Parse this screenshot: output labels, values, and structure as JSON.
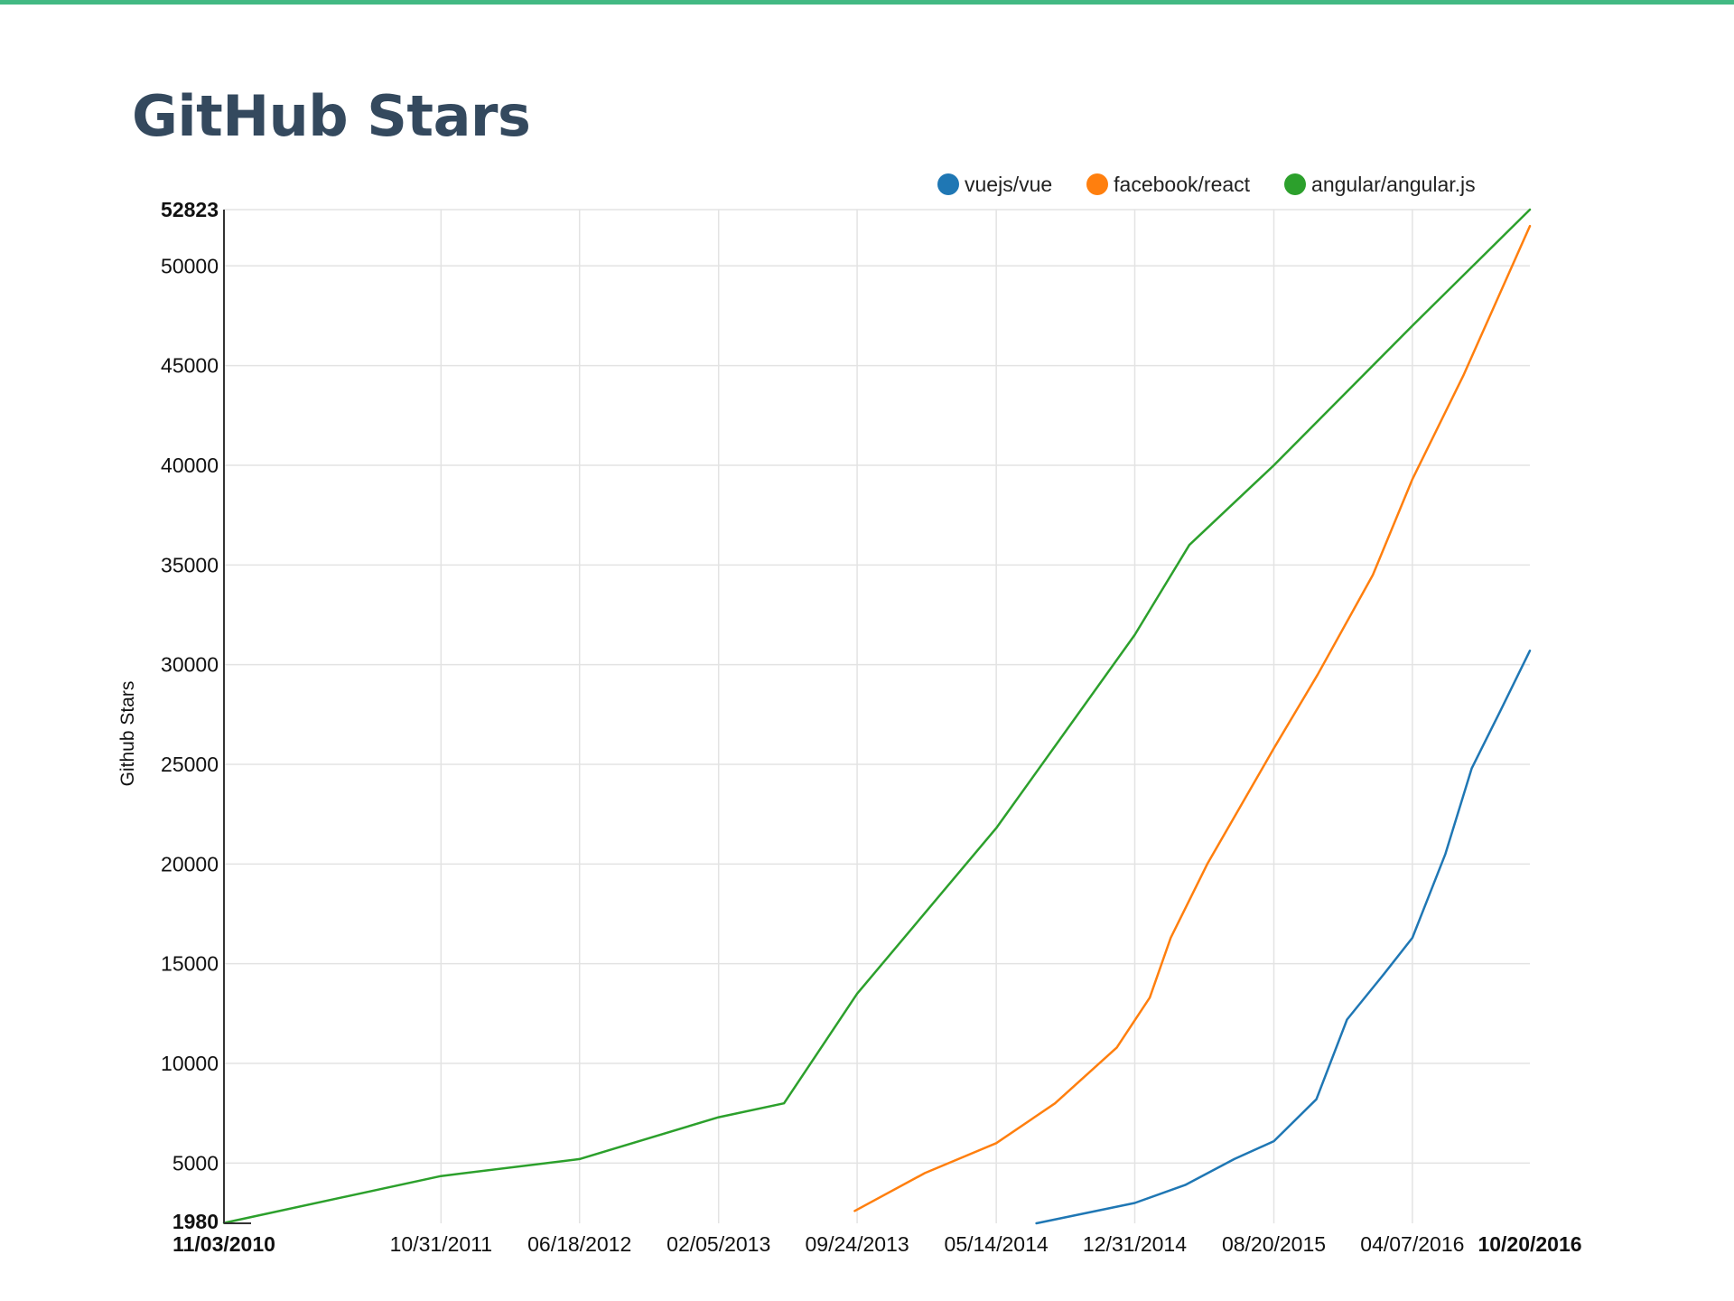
{
  "page": {
    "title": "GitHub Stars"
  },
  "colors": {
    "accent": "#42b983",
    "title": "#34495e",
    "grid": "#e3e3e3",
    "axis": "#333333"
  },
  "legend": [
    {
      "name": "vuejs/vue",
      "color": "#1f77b4"
    },
    {
      "name": "facebook/react",
      "color": "#ff7f0e"
    },
    {
      "name": "angular/angular.js",
      "color": "#2ca02c"
    }
  ],
  "chart_data": {
    "type": "line",
    "title": "GitHub Stars",
    "xlabel": "",
    "ylabel": "Github Stars",
    "grid": true,
    "legend_position": "top-right",
    "xlim": [
      "2010-11-03",
      "2016-10-20"
    ],
    "ylim": [
      1980,
      52823
    ],
    "x_ticks": [
      {
        "label": "11/03/2010",
        "date": "2010-11-03",
        "bold": true
      },
      {
        "label": "10/31/2011",
        "date": "2011-10-31",
        "bold": false
      },
      {
        "label": "06/18/2012",
        "date": "2012-06-18",
        "bold": false
      },
      {
        "label": "02/05/2013",
        "date": "2013-02-05",
        "bold": false
      },
      {
        "label": "09/24/2013",
        "date": "2013-09-24",
        "bold": false
      },
      {
        "label": "05/14/2014",
        "date": "2014-05-14",
        "bold": false
      },
      {
        "label": "12/31/2014",
        "date": "2014-12-31",
        "bold": false
      },
      {
        "label": "08/20/2015",
        "date": "2015-08-20",
        "bold": false
      },
      {
        "label": "04/07/2016",
        "date": "2016-04-07",
        "bold": false
      },
      {
        "label": "10/20/2016",
        "date": "2016-10-20",
        "bold": true
      }
    ],
    "y_ticks": [
      {
        "label": "1980",
        "value": 1980,
        "bold": true
      },
      {
        "label": "5000",
        "value": 5000,
        "bold": false
      },
      {
        "label": "10000",
        "value": 10000,
        "bold": false
      },
      {
        "label": "15000",
        "value": 15000,
        "bold": false
      },
      {
        "label": "20000",
        "value": 20000,
        "bold": false
      },
      {
        "label": "25000",
        "value": 25000,
        "bold": false
      },
      {
        "label": "30000",
        "value": 30000,
        "bold": false
      },
      {
        "label": "35000",
        "value": 35000,
        "bold": false
      },
      {
        "label": "40000",
        "value": 40000,
        "bold": false
      },
      {
        "label": "45000",
        "value": 45000,
        "bold": false
      },
      {
        "label": "50000",
        "value": 50000,
        "bold": false
      },
      {
        "label": "52823",
        "value": 52823,
        "bold": true
      }
    ],
    "series": [
      {
        "name": "vuejs/vue",
        "color": "#1f77b4",
        "points": [
          [
            "2014-07-20",
            1980
          ],
          [
            "2014-12-31",
            3000
          ],
          [
            "2015-03-25",
            3900
          ],
          [
            "2015-06-15",
            5200
          ],
          [
            "2015-08-20",
            6100
          ],
          [
            "2015-10-30",
            8200
          ],
          [
            "2015-12-20",
            12200
          ],
          [
            "2016-02-20",
            14500
          ],
          [
            "2016-04-07",
            16300
          ],
          [
            "2016-06-01",
            20500
          ],
          [
            "2016-07-15",
            24800
          ],
          [
            "2016-09-01",
            27700
          ],
          [
            "2016-10-20",
            30700
          ]
        ]
      },
      {
        "name": "facebook/react",
        "color": "#ff7f0e",
        "points": [
          [
            "2013-09-20",
            2600
          ],
          [
            "2014-01-15",
            4500
          ],
          [
            "2014-05-14",
            6000
          ],
          [
            "2014-08-20",
            8000
          ],
          [
            "2014-12-01",
            10800
          ],
          [
            "2015-01-25",
            13300
          ],
          [
            "2015-03-01",
            16300
          ],
          [
            "2015-05-01",
            20000
          ],
          [
            "2015-08-20",
            25800
          ],
          [
            "2015-11-01",
            29500
          ],
          [
            "2016-02-01",
            34500
          ],
          [
            "2016-04-07",
            39300
          ],
          [
            "2016-07-01",
            44500
          ],
          [
            "2016-10-20",
            52000
          ]
        ]
      },
      {
        "name": "angular/angular.js",
        "color": "#2ca02c",
        "points": [
          [
            "2010-11-03",
            2000
          ],
          [
            "2011-10-31",
            4350
          ],
          [
            "2012-06-18",
            5200
          ],
          [
            "2013-02-05",
            7300
          ],
          [
            "2013-05-25",
            8000
          ],
          [
            "2013-09-24",
            13500
          ],
          [
            "2014-05-14",
            21800
          ],
          [
            "2014-09-15",
            27000
          ],
          [
            "2014-12-31",
            31500
          ],
          [
            "2015-04-01",
            36000
          ],
          [
            "2015-08-20",
            40000
          ],
          [
            "2016-04-07",
            47000
          ],
          [
            "2016-10-20",
            52823
          ]
        ]
      }
    ]
  }
}
